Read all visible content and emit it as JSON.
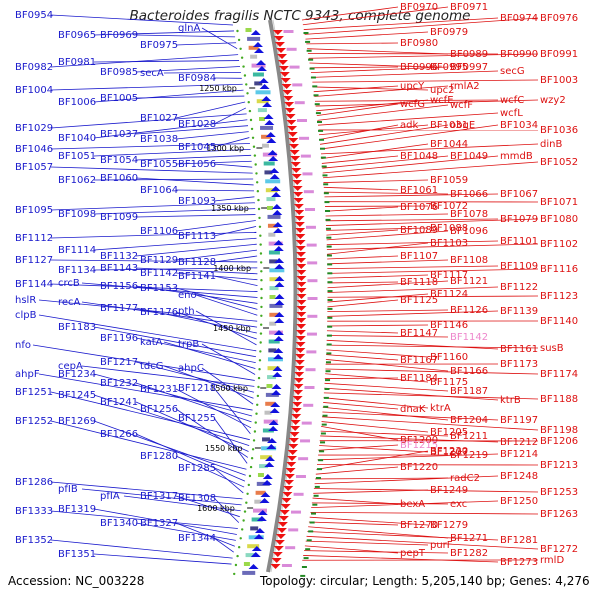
{
  "title": "Bacteroides fragilis NCTC 9343, complete genome",
  "footer": {
    "accession": "Accession: NC_003228",
    "summary": "Topology: circular; Length: 5,205,140 bp; Genes: 4,276"
  },
  "colors": {
    "left_label": "#1a1acc",
    "right_label": "#dd1111",
    "faint_label": "#ee88cc",
    "backbone": "#888888",
    "tick_label": "#000000"
  },
  "ticks": [
    "1250 kbp",
    "1300 kbp",
    "1350 kbp",
    "1400 kbp",
    "1450 kbp",
    "1500 kbp",
    "1550 kbp",
    "1600 kbp"
  ],
  "left_labels": [
    [
      "BF0954",
      15
    ],
    [
      "BF0965",
      35
    ],
    [
      "BF0969",
      35
    ],
    [
      "BF0975",
      45
    ],
    [
      "glnA",
      28
    ],
    [
      "BF0982",
      67
    ],
    [
      "BF0981",
      62
    ],
    [
      "BF0985",
      72
    ],
    [
      "secA",
      73
    ],
    [
      "BF0984",
      78
    ],
    [
      "BF1004",
      90
    ],
    [
      "BF1006",
      102
    ],
    [
      "BF1005",
      98
    ],
    [
      "BF1027",
      118
    ],
    [
      "BF1028",
      124
    ],
    [
      "BF1029",
      128
    ],
    [
      "BF1040",
      138
    ],
    [
      "BF1037",
      134
    ],
    [
      "BF1038",
      139
    ],
    [
      "BF1045",
      147
    ],
    [
      "BF1046",
      149
    ],
    [
      "BF1051",
      156
    ],
    [
      "BF1054",
      160
    ],
    [
      "BF1055",
      164
    ],
    [
      "BF1056",
      164
    ],
    [
      "BF1057",
      167
    ],
    [
      "BF1062",
      180
    ],
    [
      "BF1060",
      178
    ],
    [
      "BF1064",
      190
    ],
    [
      "BF1093",
      201
    ],
    [
      "BF1095",
      210
    ],
    [
      "BF1098",
      214
    ],
    [
      "BF1099",
      217
    ],
    [
      "BF1106",
      231
    ],
    [
      "BF1113",
      236
    ],
    [
      "BF1112",
      238
    ],
    [
      "BF1114",
      250
    ],
    [
      "BF1132",
      256
    ],
    [
      "BF1129",
      260
    ],
    [
      "BF1128",
      262
    ],
    [
      "BF1127",
      260
    ],
    [
      "BF1134",
      270
    ],
    [
      "BF1143",
      268
    ],
    [
      "BF1142",
      273
    ],
    [
      "BF1141",
      276
    ],
    [
      "BF1144",
      284
    ],
    [
      "crcB",
      283
    ],
    [
      "BF1156",
      286
    ],
    [
      "BF1153",
      288
    ],
    [
      "eno",
      295
    ],
    [
      "hslR",
      300
    ],
    [
      "recA",
      302
    ],
    [
      "BF1177",
      308
    ],
    [
      "BF1176",
      312
    ],
    [
      "pth",
      311
    ],
    [
      "clpB",
      315
    ],
    [
      "BF1183",
      327
    ],
    [
      "BF1196",
      338
    ],
    [
      "katA",
      342
    ],
    [
      "trpB",
      344
    ],
    [
      "nfo",
      345
    ],
    [
      "cepA",
      366
    ],
    [
      "BF1217",
      362
    ],
    [
      "tdcG",
      366
    ],
    [
      "ahpC",
      368
    ],
    [
      "ahpF",
      374
    ],
    [
      "BF1234",
      374
    ],
    [
      "BF1232",
      383
    ],
    [
      "BF1231",
      389
    ],
    [
      "BF1218",
      388
    ],
    [
      "BF1251",
      392
    ],
    [
      "BF1245",
      395
    ],
    [
      "BF1241",
      402
    ],
    [
      "BF1256",
      409
    ],
    [
      "BF1255",
      418
    ],
    [
      "BF1252",
      421
    ],
    [
      "BF1269",
      421
    ],
    [
      "BF1266",
      434
    ],
    [
      "BF1280",
      456
    ],
    [
      "BF1285",
      468
    ],
    [
      "BF1286",
      482
    ],
    [
      "pfIB",
      489
    ],
    [
      "pfIA",
      496
    ],
    [
      "BF1317",
      496
    ],
    [
      "BF1308",
      498
    ],
    [
      "BF1333",
      511
    ],
    [
      "BF1319",
      509
    ],
    [
      "BF1340",
      523
    ],
    [
      "BF1327",
      523
    ],
    [
      "BF1344",
      538
    ],
    [
      "BF1352",
      540
    ],
    [
      "BF1351",
      554
    ]
  ],
  "right_labels": [
    [
      "BF0970",
      7
    ],
    [
      "BF0971",
      7
    ],
    [
      "BF0974",
      18
    ],
    [
      "BF0976",
      18
    ],
    [
      "BF0979",
      32
    ],
    [
      "BF0980",
      43
    ],
    [
      "BF0989",
      54
    ],
    [
      "BF0990",
      54
    ],
    [
      "BF0991",
      54
    ],
    [
      "BF0995",
      67
    ],
    [
      "BF0996",
      67
    ],
    [
      "BF0997",
      67
    ],
    [
      "secG",
      71
    ],
    [
      "BF1003",
      80
    ],
    [
      "upc2",
      90
    ],
    [
      "upcY",
      86
    ],
    [
      "rmlA2",
      86
    ],
    [
      "wcfC",
      100
    ],
    [
      "wzy2",
      100
    ],
    [
      "wcfE",
      100
    ],
    [
      "wcfG",
      104
    ],
    [
      "wcfF",
      105
    ],
    [
      "wcfL",
      113
    ],
    [
      "BF1036",
      130
    ],
    [
      "BF1031",
      125
    ],
    [
      "adk",
      125
    ],
    [
      "obgE",
      125
    ],
    [
      "BF1034",
      125
    ],
    [
      "dinB",
      144
    ],
    [
      "BF1044",
      144
    ],
    [
      "BF1048",
      156
    ],
    [
      "BF1049",
      156
    ],
    [
      "mmdB",
      156
    ],
    [
      "BF1052",
      162
    ],
    [
      "BF1059",
      180
    ],
    [
      "BF1061",
      190
    ],
    [
      "BF1066",
      194
    ],
    [
      "BF1067",
      194
    ],
    [
      "BF1071",
      202
    ],
    [
      "BF1072",
      206
    ],
    [
      "BF1076",
      207
    ],
    [
      "BF1078",
      214
    ],
    [
      "BF1079",
      219
    ],
    [
      "BF1080",
      219
    ],
    [
      "BF1088",
      228
    ],
    [
      "BF1089",
      230
    ],
    [
      "BF1096",
      231
    ],
    [
      "BF1101",
      241
    ],
    [
      "BF1102",
      244
    ],
    [
      "BF1103",
      243
    ],
    [
      "BF1107",
      256
    ],
    [
      "BF1108",
      260
    ],
    [
      "BF1109",
      266
    ],
    [
      "BF1116",
      269
    ],
    [
      "BF1117",
      275
    ],
    [
      "BF1118",
      282
    ],
    [
      "BF1121",
      281
    ],
    [
      "BF1122",
      287
    ],
    [
      "BF1123",
      296
    ],
    [
      "BF1124",
      294
    ],
    [
      "BF1125",
      300
    ],
    [
      "BF1126",
      310
    ],
    [
      "BF1139",
      311
    ],
    [
      "BF1140",
      321
    ],
    [
      "BF1146",
      325
    ],
    [
      "BF1147",
      333
    ],
    [
      "BF1142",
      337
    ],
    [
      "BF1161",
      349
    ],
    [
      "susB",
      348
    ],
    [
      "BF1160",
      357
    ],
    [
      "BF1167",
      360
    ],
    [
      "BF1166",
      371
    ],
    [
      "BF1173",
      364
    ],
    [
      "BF1174",
      374
    ],
    [
      "BF1175",
      382
    ],
    [
      "BF1184",
      378
    ],
    [
      "BF1187",
      391
    ],
    [
      "ktrB",
      400
    ],
    [
      "BF1188",
      399
    ],
    [
      "ktrA",
      408
    ],
    [
      "dnaK",
      409
    ],
    [
      "BF1204",
      420
    ],
    [
      "BF1197",
      420
    ],
    [
      "BF1198",
      430
    ],
    [
      "BF1205",
      432
    ],
    [
      "BF1200",
      440
    ],
    [
      "BF1211",
      436
    ],
    [
      "BF1212",
      442
    ],
    [
      "BF1206",
      441
    ],
    [
      "BF1207",
      452
    ],
    [
      "BF1215",
      445
    ],
    [
      "BF1219",
      455
    ],
    [
      "BF1214",
      454
    ],
    [
      "BF1213",
      465
    ],
    [
      "BF1230",
      451
    ],
    [
      "BF1220",
      467
    ],
    [
      "radC2",
      478
    ],
    [
      "BF1248",
      476
    ],
    [
      "BF1253",
      492
    ],
    [
      "BF1249",
      490
    ],
    [
      "bexA",
      504
    ],
    [
      "exc",
      504
    ],
    [
      "BF1250",
      501
    ],
    [
      "BF1263",
      514
    ],
    [
      "BF1279",
      525
    ],
    [
      "BF1270",
      525
    ],
    [
      "BF1271",
      538
    ],
    [
      "BF1281",
      540
    ],
    [
      "BF1272",
      549
    ],
    [
      "purF",
      545
    ],
    [
      "pepT",
      553
    ],
    [
      "BF1282",
      553
    ],
    [
      "BF1273",
      562
    ],
    [
      "rmlD",
      560
    ]
  ]
}
